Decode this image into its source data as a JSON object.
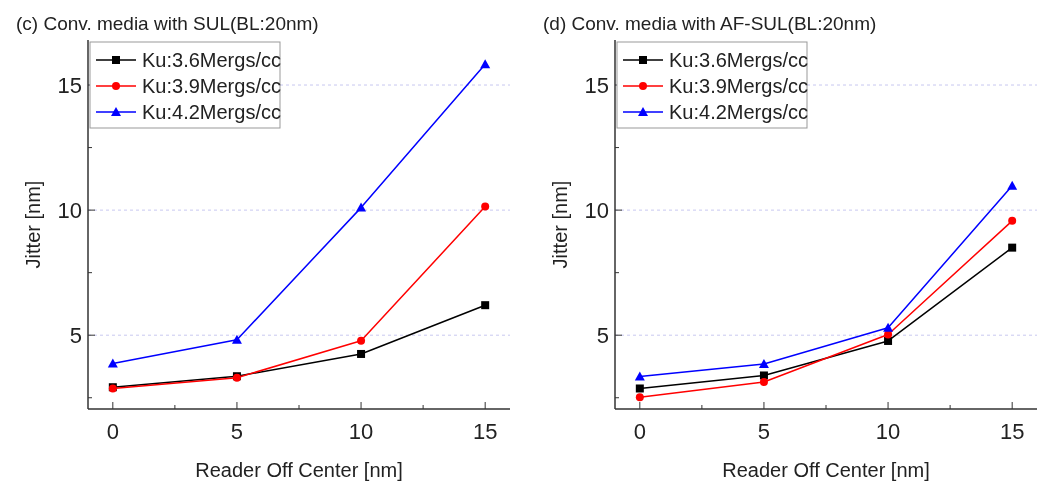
{
  "chart_data": [
    {
      "type": "line",
      "title": "(c) Conv. media with SUL(BL:20nm)",
      "xlabel": "Reader Off Center [nm]",
      "ylabel": "Jitter [nm]",
      "x": [
        0,
        5,
        10,
        15
      ],
      "xlim": [
        -1,
        16
      ],
      "ylim": [
        2.05,
        16.8
      ],
      "xticks": [
        0,
        {
          "value": 2.5,
          "label": null
        },
        5,
        {
          "value": 7.5,
          "label": null
        },
        10,
        {
          "value": 12.5,
          "label": null
        },
        15
      ],
      "yticks": [
        {
          "value": 2.5,
          "label": null
        },
        5,
        {
          "value": 7.5,
          "label": null
        },
        10,
        {
          "value": 12.5,
          "label": null
        },
        15
      ],
      "grid": "y",
      "legend": "top left",
      "line_style": "solid",
      "series": [
        {
          "name": "Ku:3.6Mergs/cc",
          "color": "#000000",
          "marker": "square",
          "values": [
            2.92,
            3.36,
            4.25,
            6.2
          ]
        },
        {
          "name": "Ku:3.9Mergs/cc",
          "color": "#ff0000",
          "marker": "circle",
          "values": [
            2.87,
            3.3,
            4.78,
            10.14
          ]
        },
        {
          "name": "Ku:4.2Mergs/cc",
          "color": "#0000ff",
          "marker": "triangle",
          "values": [
            3.87,
            4.82,
            10.1,
            15.83
          ]
        }
      ]
    },
    {
      "type": "line",
      "title": "(d) Conv. media with AF-SUL(BL:20nm)",
      "xlabel": "Reader Off Center [nm]",
      "ylabel": "Jitter [nm]",
      "x": [
        0,
        5,
        10,
        15
      ],
      "xlim": [
        -1,
        16
      ],
      "ylim": [
        2.05,
        16.8
      ],
      "xticks": [
        0,
        {
          "value": 2.5,
          "label": null
        },
        5,
        {
          "value": 7.5,
          "label": null
        },
        10,
        {
          "value": 12.5,
          "label": null
        },
        15
      ],
      "yticks": [
        {
          "value": 2.5,
          "label": null
        },
        5,
        {
          "value": 7.5,
          "label": null
        },
        10,
        {
          "value": 12.5,
          "label": null
        },
        15
      ],
      "grid": "y",
      "legend": "top left",
      "line_style": "solid",
      "series": [
        {
          "name": "Ku:3.6Mergs/cc",
          "color": "#000000",
          "marker": "square",
          "values": [
            2.87,
            3.39,
            4.77,
            8.5
          ]
        },
        {
          "name": "Ku:3.9Mergs/cc",
          "color": "#ff0000",
          "marker": "circle",
          "values": [
            2.52,
            3.13,
            5.03,
            9.57
          ]
        },
        {
          "name": "Ku:4.2Mergs/cc",
          "color": "#0000ff",
          "marker": "triangle",
          "values": [
            3.35,
            3.85,
            5.3,
            10.97
          ]
        }
      ]
    }
  ]
}
